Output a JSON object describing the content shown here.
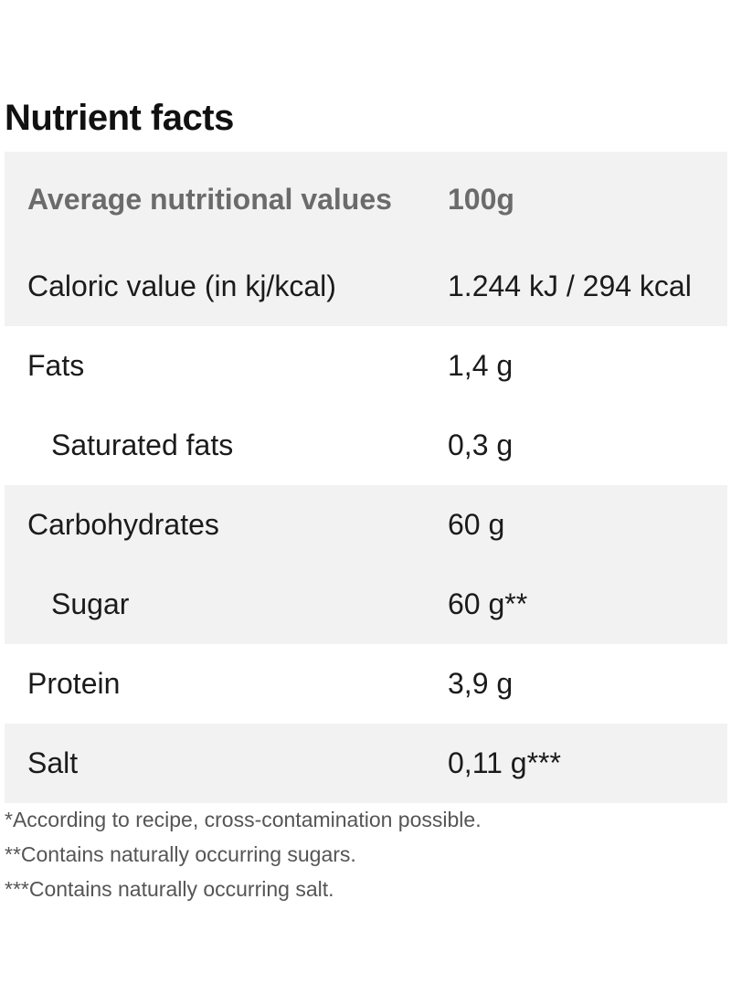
{
  "title": "Nutrient facts",
  "header": {
    "label": "Average nutritional values",
    "value": "100g"
  },
  "rows": [
    {
      "label": "Caloric value (in kj/kcal)",
      "value": "1.244 kJ / 294 kcal"
    },
    {
      "label": "Fats",
      "value": "1,4 g"
    },
    {
      "label": "Saturated fats",
      "value": "0,3 g"
    },
    {
      "label": "Carbohydrates",
      "value": "60 g"
    },
    {
      "label": "Sugar",
      "value": "60 g**"
    },
    {
      "label": "Protein",
      "value": "3,9 g"
    },
    {
      "label": "Salt",
      "value": "0,11 g***"
    }
  ],
  "footnotes": [
    "*According to recipe, cross-contamination possible.",
    "**Contains naturally occurring sugars.",
    "***Contains naturally occurring salt."
  ],
  "colors": {
    "row_shade": "#f2f2f2",
    "header_text": "#6b6b6b",
    "body_text": "#1b1b1b"
  }
}
